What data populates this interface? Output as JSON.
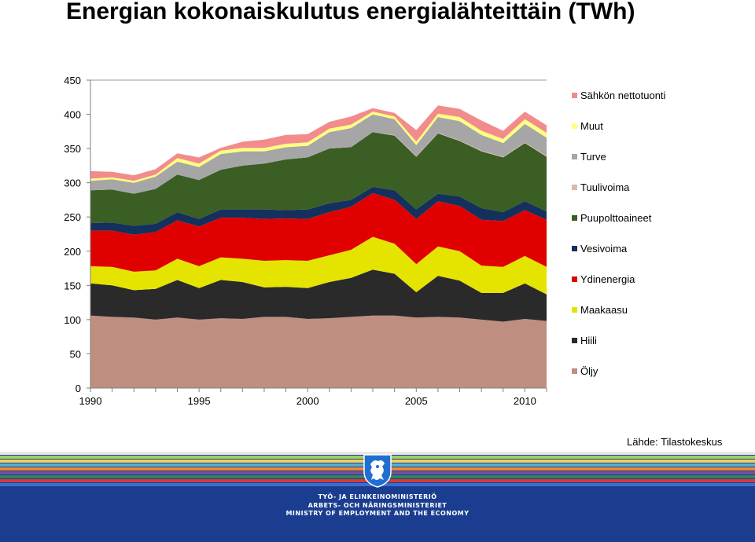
{
  "title": "Energian kokonaiskulutus energialähteittäin (TWh)",
  "source": "Lähde: Tilastokeskus",
  "chart_data": {
    "type": "area",
    "stacked": true,
    "title": "Energian kokonaiskulutus energialähteittäin (TWh)",
    "xlabel": "",
    "ylabel": "",
    "ylim": [
      0,
      450
    ],
    "yticks": [
      0,
      50,
      100,
      150,
      200,
      250,
      300,
      350,
      400,
      450
    ],
    "xticks": [
      1990,
      1995,
      2000,
      2005,
      2010
    ],
    "x": [
      1990,
      1991,
      1992,
      1993,
      1994,
      1995,
      1996,
      1997,
      1998,
      1999,
      2000,
      2001,
      2002,
      2003,
      2004,
      2005,
      2006,
      2007,
      2008,
      2009,
      2010,
      2011
    ],
    "legend_position": "right",
    "series": [
      {
        "name": "Öljy",
        "color": "#be8f80",
        "values": [
          106,
          104,
          103,
          100,
          103,
          100,
          102,
          101,
          104,
          104,
          101,
          102,
          104,
          106,
          106,
          103,
          104,
          103,
          100,
          97,
          101,
          98
        ]
      },
      {
        "name": "Hiili",
        "color": "#2a2a2a",
        "values": [
          47,
          46,
          40,
          45,
          55,
          46,
          56,
          54,
          43,
          44,
          45,
          53,
          57,
          67,
          61,
          37,
          60,
          54,
          39,
          42,
          52,
          39
        ]
      },
      {
        "name": "Maakaasu",
        "color": "#e4e400",
        "values": [
          25,
          27,
          27,
          27,
          31,
          32,
          33,
          34,
          39,
          39,
          40,
          39,
          41,
          48,
          44,
          41,
          43,
          43,
          40,
          38,
          40,
          40
        ]
      },
      {
        "name": "Ydinenergia",
        "color": "#e00000",
        "values": [
          52,
          53,
          54,
          56,
          56,
          58,
          58,
          60,
          61,
          61,
          61,
          63,
          63,
          64,
          64,
          66,
          66,
          66,
          67,
          67,
          67,
          69
        ]
      },
      {
        "name": "Vesivoima",
        "color": "#14305c",
        "values": [
          11,
          12,
          13,
          12,
          12,
          11,
          12,
          12,
          14,
          12,
          14,
          13,
          10,
          9,
          14,
          14,
          11,
          14,
          17,
          13,
          13,
          12
        ]
      },
      {
        "name": "Puupolttoaineet",
        "color": "#3a5e24",
        "values": [
          48,
          48,
          47,
          51,
          55,
          57,
          58,
          64,
          67,
          74,
          76,
          80,
          77,
          80,
          80,
          77,
          88,
          81,
          83,
          80,
          85,
          80
        ]
      },
      {
        "name": "Tuulivoima",
        "color": "#ddb8aa",
        "values": [
          0,
          0,
          0,
          0,
          0,
          0,
          0,
          0,
          0,
          0,
          0,
          0,
          0,
          0,
          1,
          1,
          1,
          1,
          1,
          1,
          1,
          1
        ]
      },
      {
        "name": "Turve",
        "color": "#a6a6a6",
        "values": [
          14,
          15,
          16,
          18,
          19,
          19,
          23,
          21,
          18,
          18,
          17,
          24,
          28,
          26,
          23,
          16,
          23,
          28,
          23,
          20,
          27,
          27
        ]
      },
      {
        "name": "Muut",
        "color": "#ffff80",
        "values": [
          3,
          3,
          3,
          3,
          5,
          5,
          5,
          5,
          5,
          5,
          5,
          5,
          5,
          4,
          4,
          5,
          5,
          6,
          6,
          6,
          7,
          7
        ]
      },
      {
        "name": "Sähkön nettotuonti",
        "color": "#f28c8c",
        "values": [
          11,
          8,
          8,
          8,
          7,
          9,
          4,
          9,
          12,
          13,
          12,
          10,
          12,
          5,
          5,
          17,
          12,
          12,
          15,
          12,
          11,
          11
        ]
      }
    ]
  },
  "legend": {
    "items": [
      {
        "label": "Sähkön nettotuonti",
        "color": "#f28c8c"
      },
      {
        "label": "Muut",
        "color": "#ffff80"
      },
      {
        "label": "Turve",
        "color": "#a6a6a6"
      },
      {
        "label": "Tuulivoima",
        "color": "#ddb8aa"
      },
      {
        "label": "Puupolttoaineet",
        "color": "#3a5e24"
      },
      {
        "label": "Vesivoima",
        "color": "#14305c"
      },
      {
        "label": "Ydinenergia",
        "color": "#e00000"
      },
      {
        "label": "Maakaasu",
        "color": "#e4e400"
      },
      {
        "label": "Hiili",
        "color": "#2a2a2a"
      },
      {
        "label": "Öljy",
        "color": "#be8f80"
      }
    ]
  },
  "footer": {
    "ministry_lines": [
      "TYÖ- JA ELINKEINOMINISTERIÖ",
      "ARBETS- OCH NÄRINGSMINISTERIET",
      "MINISTRY OF EMPLOYMENT AND THE ECONOMY"
    ],
    "stripe_colors": [
      "#e8e8e8",
      "#9fcf6a",
      "#f2d15a",
      "#55b0d8",
      "#f08a2a",
      "#7a4fa0",
      "#2a8a5a",
      "#d83a3a",
      "#3a6fd0"
    ]
  }
}
